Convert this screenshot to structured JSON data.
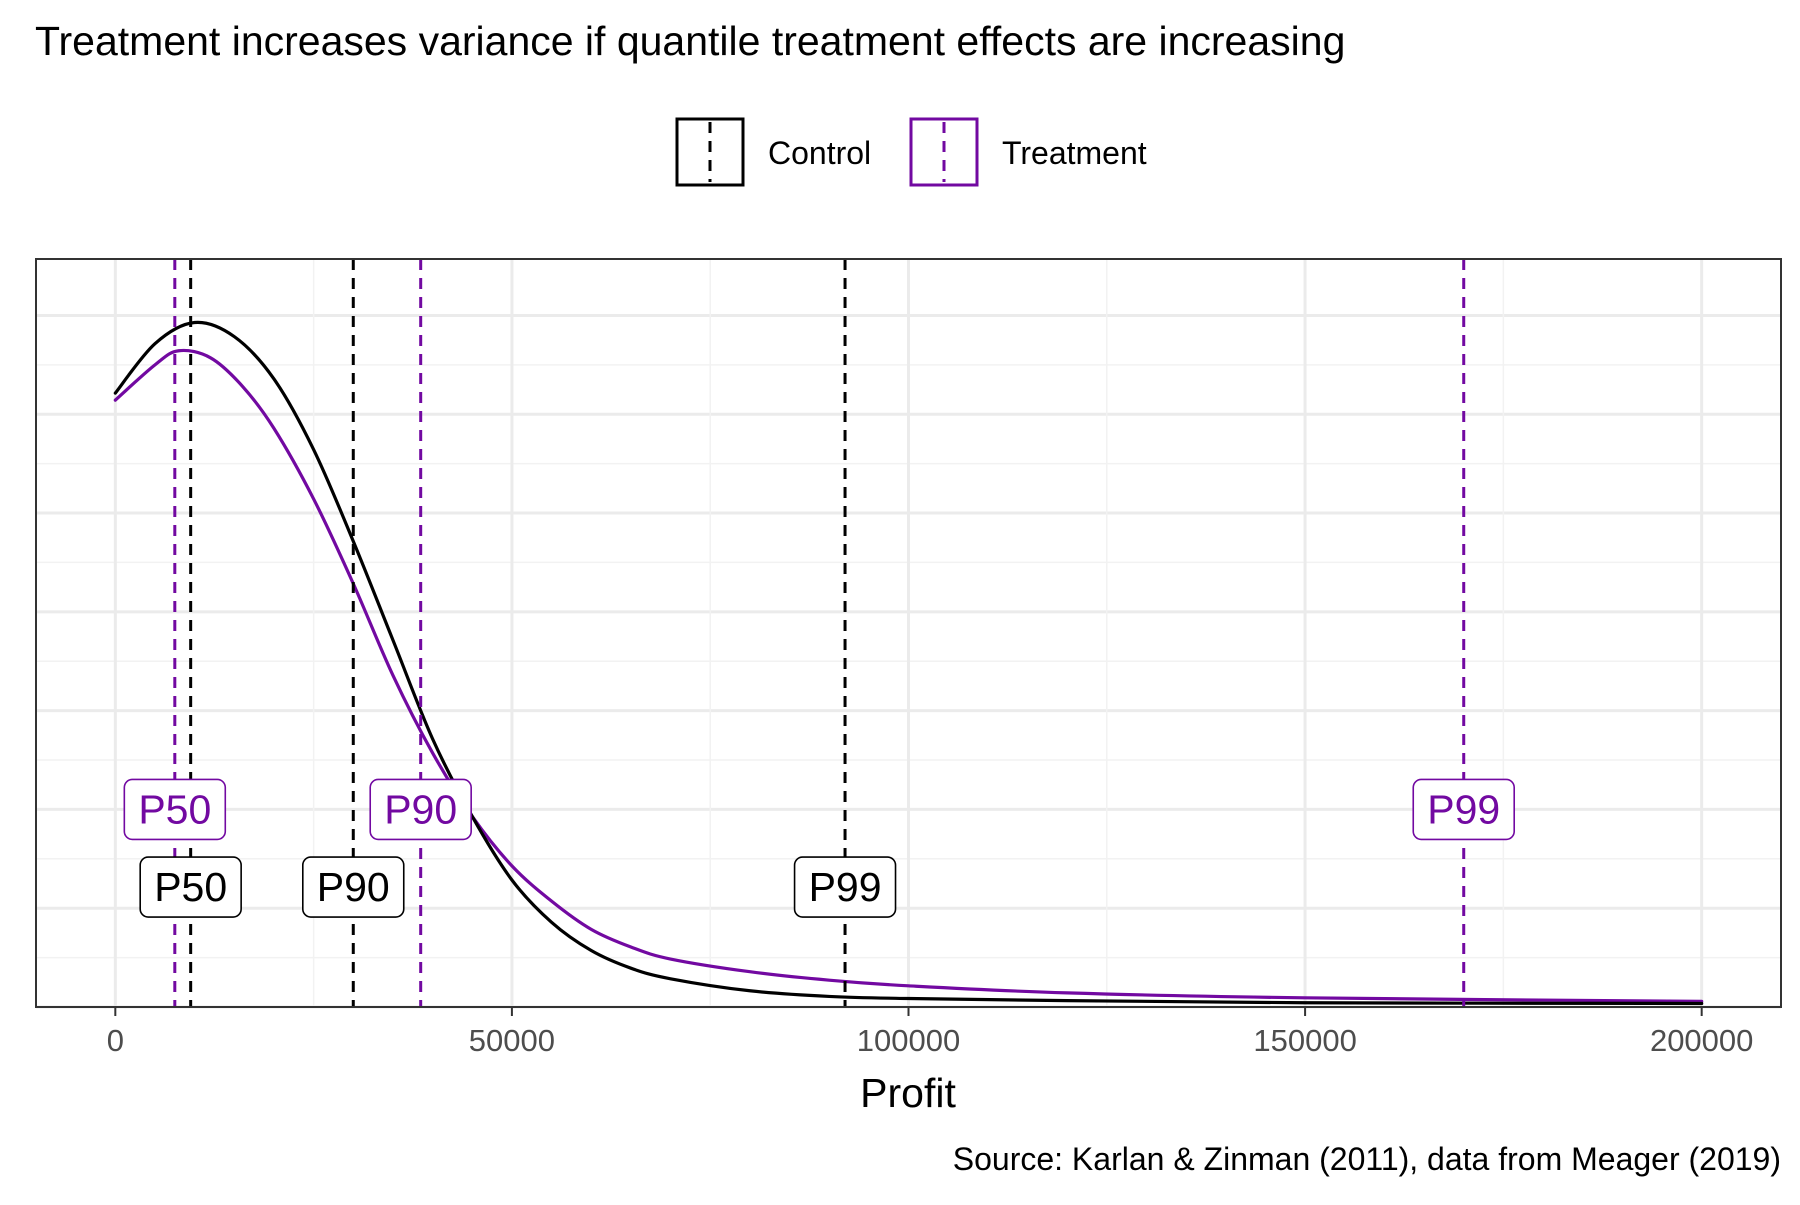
{
  "chart_data": {
    "type": "line",
    "title": "Treatment increases variance if quantile treatment effects are increasing",
    "xlabel": "Profit",
    "ylabel": "",
    "caption": "Source: Karlan & Zinman (2011), data from Meager (2019)",
    "xlim": [
      -10000,
      210000
    ],
    "ylim": [
      0,
      1.06
    ],
    "x_ticks": [
      0,
      50000,
      100000,
      150000,
      200000
    ],
    "x_tick_labels": [
      "0",
      "50000",
      "100000",
      "150000",
      "200000"
    ],
    "y_ticks": [
      0,
      0.14,
      0.28,
      0.42,
      0.56,
      0.7,
      0.84,
      0.98
    ],
    "grid": true,
    "legend": {
      "position": "top",
      "items": [
        "Control",
        "Treatment"
      ]
    },
    "series": [
      {
        "name": "Control",
        "color": "#000000",
        "x": [
          0,
          5000,
          10000,
          15000,
          20000,
          25000,
          30000,
          35000,
          40000,
          45000,
          50000,
          55000,
          60000,
          65000,
          70000,
          80000,
          90000,
          100000,
          120000,
          150000,
          200000
        ],
        "y": [
          0.87,
          0.94,
          0.97,
          0.95,
          0.89,
          0.79,
          0.66,
          0.52,
          0.38,
          0.27,
          0.18,
          0.12,
          0.08,
          0.055,
          0.04,
          0.023,
          0.015,
          0.012,
          0.009,
          0.006,
          0.005
        ]
      },
      {
        "name": "Treatment",
        "color": "#7209a1",
        "x": [
          0,
          5000,
          8000,
          12000,
          16000,
          20000,
          25000,
          30000,
          35000,
          40000,
          45000,
          50000,
          55000,
          60000,
          65000,
          70000,
          80000,
          90000,
          100000,
          120000,
          150000,
          200000
        ],
        "y": [
          0.86,
          0.91,
          0.93,
          0.92,
          0.88,
          0.82,
          0.72,
          0.6,
          0.47,
          0.36,
          0.27,
          0.2,
          0.15,
          0.11,
          0.085,
          0.068,
          0.05,
          0.038,
          0.03,
          0.02,
          0.013,
          0.008
        ]
      }
    ],
    "quantile_lines": [
      {
        "group": "Control",
        "label": "P50",
        "x": 9500,
        "color": "#000000",
        "label_y": 0.17
      },
      {
        "group": "Control",
        "label": "P90",
        "x": 30000,
        "color": "#000000",
        "label_y": 0.17
      },
      {
        "group": "Control",
        "label": "P99",
        "x": 92000,
        "color": "#000000",
        "label_y": 0.17
      },
      {
        "group": "Treatment",
        "label": "P50",
        "x": 7500,
        "color": "#7209a1",
        "label_y": 0.28
      },
      {
        "group": "Treatment",
        "label": "P90",
        "x": 38500,
        "color": "#7209a1",
        "label_y": 0.28
      },
      {
        "group": "Treatment",
        "label": "P99",
        "x": 170000,
        "color": "#7209a1",
        "label_y": 0.28
      }
    ]
  }
}
